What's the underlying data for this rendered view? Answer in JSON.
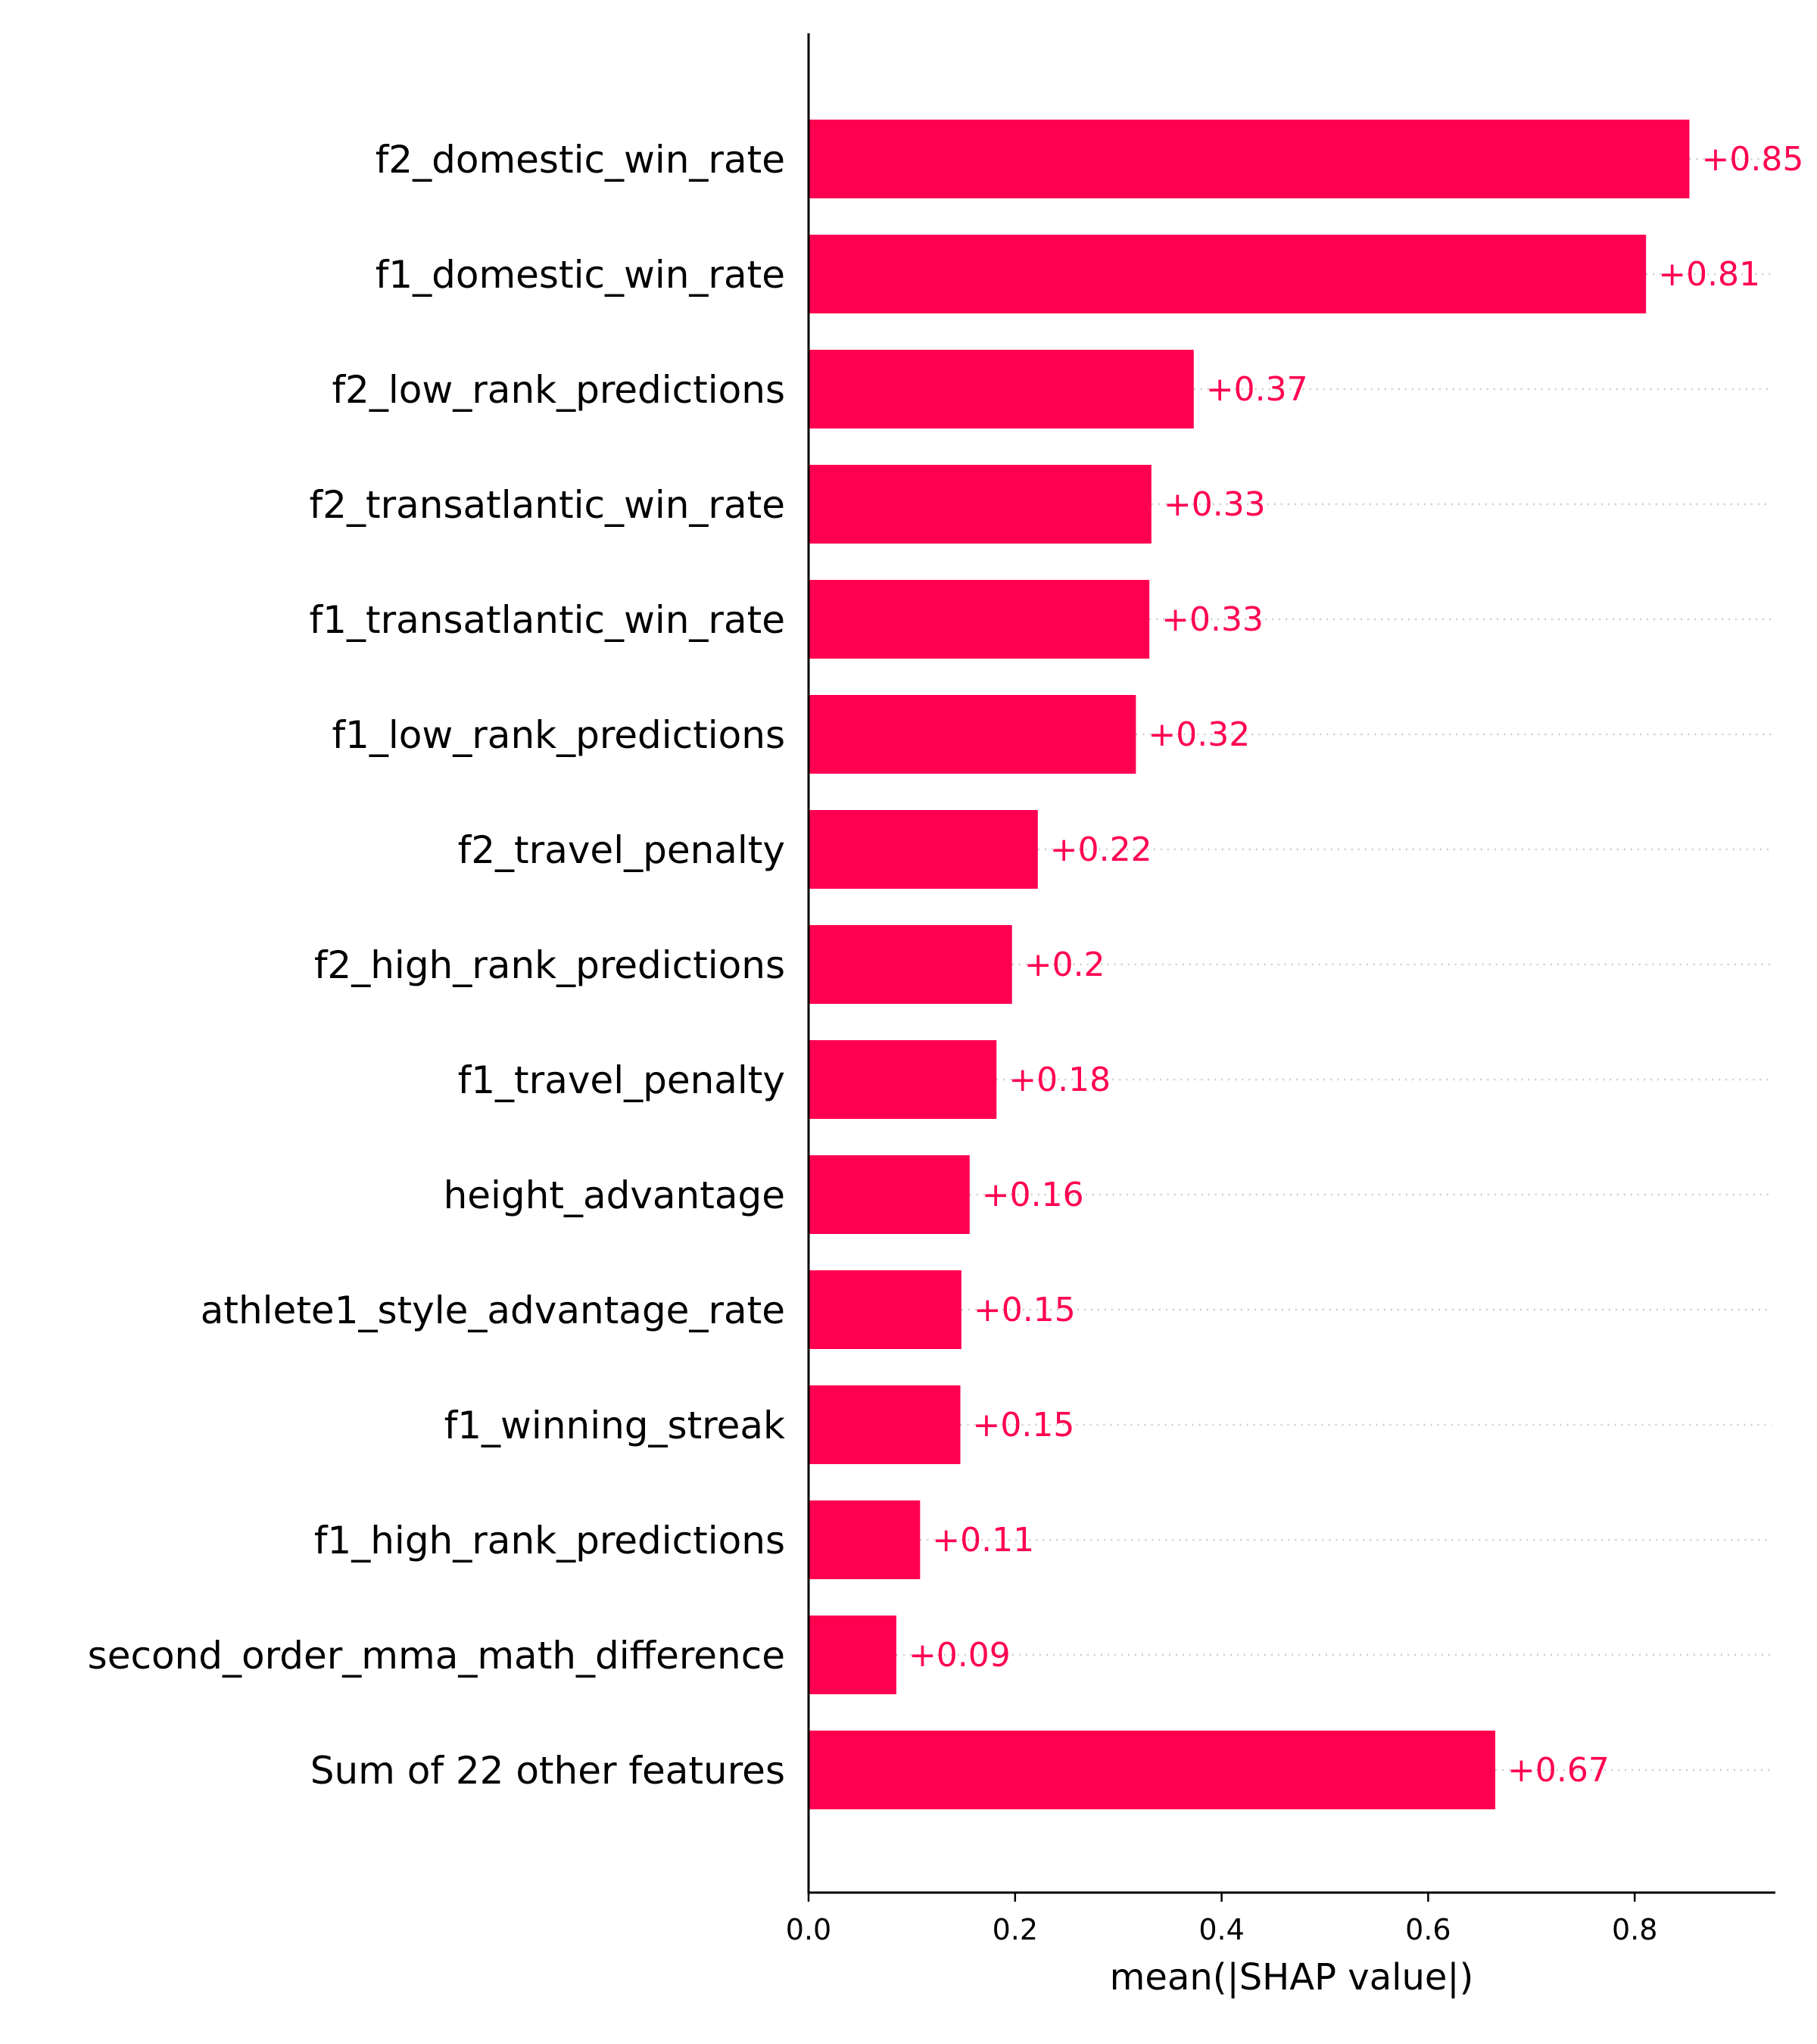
{
  "chart_data": {
    "type": "bar",
    "orientation": "horizontal",
    "title": "",
    "xlabel": "mean(|SHAP value|)",
    "ylabel": "",
    "categories": [
      "f2_domestic_win_rate",
      "f1_domestic_win_rate",
      "f2_low_rank_predictions",
      "f2_transatlantic_win_rate",
      "f1_transatlantic_win_rate",
      "f1_low_rank_predictions",
      "f2_travel_penalty",
      "f2_high_rank_predictions",
      "f1_travel_penalty",
      "height_advantage",
      "athlete1_style_advantage_rate",
      "f1_winning_streak",
      "f1_high_rank_predictions",
      "second_order_mma_math_difference",
      "Sum of 22 other features"
    ],
    "values": [
      0.853,
      0.811,
      0.373,
      0.332,
      0.33,
      0.317,
      0.222,
      0.197,
      0.182,
      0.156,
      0.148,
      0.147,
      0.108,
      0.085,
      0.665
    ],
    "value_labels": [
      "+0.85",
      "+0.81",
      "+0.37",
      "+0.33",
      "+0.33",
      "+0.32",
      "+0.22",
      "+0.2",
      "+0.18",
      "+0.16",
      "+0.15",
      "+0.15",
      "+0.11",
      "+0.09",
      "+0.67"
    ],
    "xticks": [
      0.0,
      0.2,
      0.4,
      0.6,
      0.8
    ],
    "xtick_labels": [
      "0.0",
      "0.2",
      "0.4",
      "0.6",
      "0.8"
    ],
    "xlim": [
      0,
      0.943
    ],
    "grid": "dotted guide line per row",
    "colors": {
      "bar": "#ff0051",
      "label": "#ff0051",
      "guide": "#cccccc",
      "axis": "#000000"
    }
  }
}
